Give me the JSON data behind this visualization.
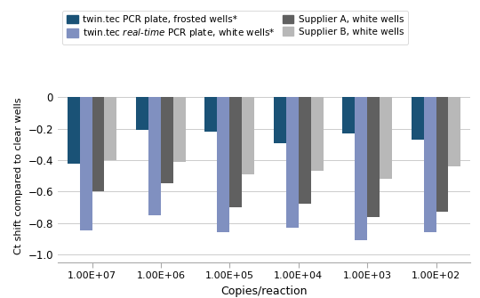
{
  "categories": [
    "1.00E+07",
    "1.00E+06",
    "1.00E+05",
    "1.00E+04",
    "1.00E+03",
    "1.00E+02"
  ],
  "series": {
    "twin_tec_frosted": [
      -0.42,
      -0.21,
      -0.22,
      -0.29,
      -0.23,
      -0.27
    ],
    "twin_tec_realtime": [
      -0.85,
      -0.75,
      -0.86,
      -0.83,
      -0.91,
      -0.86
    ],
    "supplier_a": [
      -0.6,
      -0.55,
      -0.7,
      -0.68,
      -0.76,
      -0.73
    ],
    "supplier_b": [
      -0.4,
      -0.41,
      -0.49,
      -0.47,
      -0.52,
      -0.44
    ]
  },
  "colors": {
    "twin_tec_frosted": "#1a5276",
    "twin_tec_realtime": "#8090c0",
    "supplier_a": "#606060",
    "supplier_b": "#b8b8b8"
  },
  "legend_labels": {
    "twin_tec_frosted": "twin.tec PCR plate, frosted wells*",
    "twin_tec_realtime": "twin.tec $\\it{real}$-$\\it{time}$ PCR plate, white wells*",
    "supplier_a": "Supplier A, white wells",
    "supplier_b": "Supplier B, white wells"
  },
  "ylabel": "Ct shift compared to clear wells",
  "xlabel": "Copies/reaction",
  "ylim": [
    -1.05,
    0.05
  ],
  "yticks": [
    -1.0,
    -0.8,
    -0.6,
    -0.4,
    -0.2,
    0
  ],
  "ytick_labels": [
    "−1.0",
    "−0.8",
    "−0.6",
    "−0.4",
    "−0.2",
    "0"
  ],
  "background_color": "#ffffff",
  "grid_color": "#cccccc",
  "bar_width": 0.18,
  "series_order": [
    "twin_tec_frosted",
    "twin_tec_realtime",
    "supplier_a",
    "supplier_b"
  ]
}
